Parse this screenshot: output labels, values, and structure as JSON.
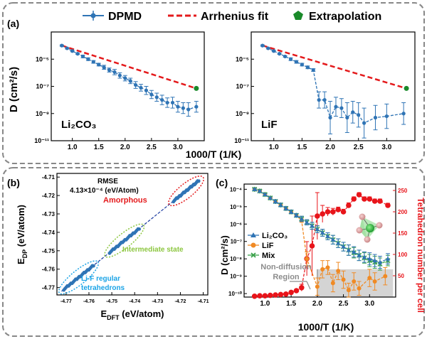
{
  "colors": {
    "dpmd": "#2f74b5",
    "arrhenius": "#e41a1c",
    "extrapolation": "#1a8a2a",
    "lif": "#f08a24",
    "mix": "#3aa14a",
    "tetra": "#e8141a",
    "panel_border": "#888888",
    "shade": "#d4d4d4",
    "ellipse_red": "#e41a1c",
    "ellipse_green": "#8cc63f",
    "ellipse_blue": "#1aa3e6",
    "ann_gray": "#8c8c8c"
  },
  "panel_a": {
    "label": "(a)",
    "legend": {
      "dpmd": "DPMD",
      "arrhenius": "Arrhenius fit",
      "extrapolation": "Extrapolation"
    },
    "ylabel": "D (cm²/s)",
    "xlabel": "1000/T (1/K)"
  },
  "panel_b": {
    "label": "(b)"
  },
  "panel_c": {
    "label": "(c)",
    "xlabel": "1000/T (1/K)",
    "ylabel_left": "D (cm²/s)",
    "ylabel_right": "Tetrahedron number per cell",
    "legend": {
      "li2co3": "Li₂CO₃",
      "lif": "LiF",
      "mix": "Mix"
    },
    "annotation_line1": "Non-diffusion",
    "annotation_line2": "Region"
  },
  "chart_data": [
    {
      "id": "a-left",
      "type": "line",
      "title": "Li₂CO₃",
      "xlabel": "1000/T (1/K)",
      "ylabel": "D (cm²/s)",
      "yscale": "log",
      "xlim": [
        0.6,
        3.5
      ],
      "ylim_exp": [
        -11,
        -3
      ],
      "xticks": [
        1.0,
        1.5,
        2.0,
        2.5,
        3.0
      ],
      "xtick_labels": [
        "1.0",
        "1.5",
        "2.0",
        "2.5",
        "3.0"
      ],
      "yticks_exp": [
        -11,
        -9,
        -7,
        -5
      ],
      "ytick_labels": [
        "10⁻¹¹",
        "10⁻⁹",
        "10⁻⁷",
        "10⁻⁵"
      ],
      "series": [
        {
          "name": "DPMD",
          "x": [
            0.8,
            0.9,
            1.0,
            1.1,
            1.2,
            1.3,
            1.4,
            1.5,
            1.6,
            1.7,
            1.8,
            1.9,
            2.0,
            2.1,
            2.2,
            2.3,
            2.4,
            2.5,
            2.6,
            2.7,
            2.8,
            2.9,
            3.0,
            3.1,
            3.2,
            3.35
          ],
          "y_exp": [
            -4.0,
            -4.2,
            -4.4,
            -4.6,
            -4.8,
            -5.0,
            -5.2,
            -5.4,
            -5.6,
            -5.8,
            -5.95,
            -6.2,
            -6.4,
            -6.6,
            -6.9,
            -7.1,
            -7.3,
            -7.6,
            -7.8,
            -8.0,
            -8.2,
            -8.2,
            -8.5,
            -8.6,
            -8.7,
            -8.5
          ],
          "err_exp": [
            0.05,
            0.05,
            0.05,
            0.05,
            0.1,
            0.1,
            0.1,
            0.1,
            0.15,
            0.15,
            0.2,
            0.2,
            0.2,
            0.2,
            0.25,
            0.25,
            0.3,
            0.3,
            0.3,
            0.35,
            0.35,
            0.4,
            0.4,
            0.4,
            0.5,
            0.4
          ]
        },
        {
          "name": "Arrhenius fit",
          "x": [
            0.8,
            3.35
          ],
          "y_exp": [
            -4.0,
            -7.15
          ]
        },
        {
          "name": "Extrapolation",
          "x": [
            3.35
          ],
          "y_exp": [
            -7.15
          ]
        }
      ]
    },
    {
      "id": "a-right",
      "type": "line",
      "title": "LiF",
      "xlabel": "1000/T (1/K)",
      "ylabel": "",
      "yscale": "log",
      "xlim": [
        0.6,
        3.5
      ],
      "ylim_exp": [
        -11,
        -3
      ],
      "xticks": [
        1.0,
        1.5,
        2.0,
        2.5,
        3.0
      ],
      "xtick_labels": [
        "1.0",
        "1.5",
        "2.0",
        "2.5",
        "3.0"
      ],
      "yticks_exp": [
        -11,
        -9,
        -7,
        -5
      ],
      "ytick_labels": [
        "10⁻¹¹",
        "10⁻⁹",
        "10⁻⁷",
        "10⁻⁵"
      ],
      "series": [
        {
          "name": "DPMD",
          "x": [
            0.8,
            0.9,
            1.0,
            1.1,
            1.2,
            1.3,
            1.4,
            1.5,
            1.6,
            1.7,
            1.8,
            1.9,
            2.0,
            2.1,
            2.2,
            2.3,
            2.4,
            2.5,
            2.6,
            2.8,
            3.0,
            3.3
          ],
          "y_exp": [
            -4.0,
            -4.2,
            -4.4,
            -4.6,
            -4.8,
            -5.0,
            -5.2,
            -5.4,
            -5.6,
            -5.8,
            -8.0,
            -8.0,
            -9.3,
            -8.5,
            -8.6,
            -9.3,
            -8.9,
            -9.1,
            -9.7,
            -9.3,
            -9.2,
            -9.0
          ],
          "err_exp": [
            0.05,
            0.05,
            0.05,
            0.05,
            0.05,
            0.1,
            0.1,
            0.1,
            0.1,
            0.1,
            0.6,
            0.6,
            1.2,
            0.7,
            0.7,
            1.1,
            0.8,
            0.9,
            1.1,
            0.9,
            0.9,
            0.8
          ]
        },
        {
          "name": "Arrhenius fit",
          "x": [
            0.8,
            3.35
          ],
          "y_exp": [
            -4.0,
            -7.15
          ]
        },
        {
          "name": "Extrapolation",
          "x": [
            3.35
          ],
          "y_exp": [
            -7.15
          ]
        }
      ]
    },
    {
      "id": "b",
      "type": "scatter",
      "title": "",
      "xlabel": "E_DFT (eV/atom)",
      "ylabel": "E_DP (eV/atom)",
      "xlim": [
        -4.774,
        -4.708
      ],
      "ylim": [
        -4.774,
        -4.708
      ],
      "xticks": [
        -4.77,
        -4.76,
        -4.75,
        -4.74,
        -4.73,
        -4.72,
        -4.71
      ],
      "xtick_labels": [
        "-4.77",
        "-4.76",
        "-4.75",
        "-4.74",
        "-4.73",
        "-4.72",
        "-4.71"
      ],
      "yticks": [
        -4.77,
        -4.76,
        -4.75,
        -4.74,
        -4.73,
        -4.72,
        -4.71
      ],
      "ytick_labels": [
        "-4.77",
        "-4.76",
        "-4.75",
        "-4.74",
        "-4.73",
        "-4.72",
        "-4.71"
      ],
      "rmse_title": "RMSE",
      "rmse_value": "4.13×10⁻⁴ (eV/Atom)",
      "clusters": [
        {
          "label": "Amorphous",
          "range": [
            -4.723,
            -4.712
          ]
        },
        {
          "label": "Intermediate state",
          "range": [
            -4.751,
            -4.738
          ]
        },
        {
          "label": "Li-F regular",
          "label2": "tetrahedrons",
          "range": [
            -4.771,
            -4.758
          ]
        }
      ],
      "diagonal": [
        -4.772,
        -4.711
      ]
    },
    {
      "id": "c",
      "type": "line",
      "title": "",
      "xlabel": "1000/T (1/K)",
      "ylabel": "D (cm²/s)",
      "y2label": "Tetrahedron number per cell",
      "yscale": "log",
      "xlim": [
        0.6,
        3.5
      ],
      "ylim_exp": [
        -10.2,
        -3.7
      ],
      "y2lim": [
        0,
        265
      ],
      "xticks": [
        1.0,
        1.5,
        2.0,
        2.5,
        3.0
      ],
      "xtick_labels": [
        "1.0",
        "1.5",
        "2.0",
        "2.5",
        "3.0"
      ],
      "yticks_exp": [
        -10,
        -9,
        -8,
        -7,
        -6,
        -5,
        -4
      ],
      "ytick_labels": [
        "10⁻¹⁰",
        "10⁻⁹",
        "10⁻⁸",
        "10⁻⁷",
        "10⁻⁶",
        "10⁻⁵",
        "10⁻⁴"
      ],
      "y2ticks": [
        50,
        100,
        150,
        200,
        250
      ],
      "y2tick_labels": [
        "50",
        "100",
        "150",
        "200",
        "250"
      ],
      "shaded_region": {
        "x": [
          2.0,
          3.45
        ],
        "y_exp": [
          -10.2,
          -8.6
        ]
      },
      "series": [
        {
          "name": "Li₂CO₃",
          "axis": "left",
          "x": [
            0.8,
            0.9,
            1.0,
            1.1,
            1.2,
            1.3,
            1.4,
            1.5,
            1.6,
            1.7,
            1.8,
            1.9,
            2.0,
            2.1,
            2.2,
            2.3,
            2.4,
            2.5,
            2.6,
            2.7,
            2.8,
            2.9,
            3.0,
            3.1,
            3.2,
            3.35
          ],
          "y_exp": [
            -4.0,
            -4.1,
            -4.3,
            -4.5,
            -4.7,
            -4.9,
            -5.1,
            -5.3,
            -5.5,
            -5.7,
            -5.9,
            -6.1,
            -6.3,
            -6.5,
            -6.7,
            -6.9,
            -7.1,
            -7.3,
            -7.5,
            -7.6,
            -7.8,
            -7.9,
            -8.0,
            -8.1,
            -8.2,
            -8.0
          ],
          "err_exp": [
            0.05,
            0.05,
            0.05,
            0.05,
            0.1,
            0.1,
            0.1,
            0.1,
            0.1,
            0.15,
            0.15,
            0.2,
            0.2,
            0.2,
            0.2,
            0.25,
            0.25,
            0.25,
            0.3,
            0.3,
            0.3,
            0.3,
            0.35,
            0.35,
            0.35,
            0.3
          ]
        },
        {
          "name": "LiF",
          "axis": "left",
          "x": [
            0.8,
            0.9,
            1.0,
            1.1,
            1.2,
            1.3,
            1.4,
            1.5,
            1.6,
            1.7,
            1.8,
            2.0,
            2.1,
            2.2,
            2.3,
            2.4,
            2.5,
            2.6,
            2.7,
            2.8,
            3.0,
            3.1,
            3.3
          ],
          "y_exp": [
            -4.0,
            -4.1,
            -4.3,
            -4.5,
            -4.7,
            -4.9,
            -5.1,
            -5.3,
            -5.5,
            -5.8,
            -8.0,
            -9.6,
            -8.6,
            -8.5,
            -9.4,
            -8.7,
            -9.2,
            -9.8,
            -9.3,
            -9.7,
            -9.1,
            -9.3,
            -9.0
          ],
          "err_exp": [
            0.05,
            0.05,
            0.05,
            0.05,
            0.05,
            0.1,
            0.1,
            0.1,
            0.1,
            0.1,
            0.4,
            0.5,
            0.5,
            0.4,
            0.5,
            0.5,
            0.5,
            0.4,
            0.5,
            0.4,
            0.5,
            0.5,
            0.5
          ]
        },
        {
          "name": "Mix",
          "axis": "left",
          "x": [
            0.8,
            0.9,
            1.0,
            1.1,
            1.2,
            1.3,
            1.4,
            1.5,
            1.6,
            1.7,
            1.8,
            1.9,
            2.0,
            2.1,
            2.2,
            2.3,
            2.4,
            2.5,
            2.6,
            2.7,
            2.8,
            2.9,
            3.0,
            3.1,
            3.2,
            3.35
          ],
          "y_exp": [
            -4.0,
            -4.1,
            -4.3,
            -4.5,
            -4.7,
            -4.9,
            -5.1,
            -5.3,
            -5.5,
            -5.7,
            -5.9,
            -6.1,
            -6.3,
            -6.5,
            -6.7,
            -6.9,
            -7.1,
            -7.3,
            -7.5,
            -7.65,
            -7.8,
            -7.95,
            -8.1,
            -8.2,
            -8.3,
            -8.1
          ],
          "err_exp": [
            0.05,
            0.05,
            0.05,
            0.05,
            0.1,
            0.1,
            0.1,
            0.1,
            0.1,
            0.15,
            0.15,
            0.2,
            0.2,
            0.2,
            0.2,
            0.25,
            0.25,
            0.25,
            0.3,
            0.3,
            0.3,
            0.3,
            0.35,
            0.35,
            0.35,
            0.3
          ]
        },
        {
          "name": "Tetrahedron number",
          "axis": "right",
          "x": [
            0.8,
            0.9,
            1.0,
            1.1,
            1.2,
            1.3,
            1.4,
            1.5,
            1.6,
            1.7,
            1.8,
            1.9,
            2.0,
            2.1,
            2.2,
            2.3,
            2.4,
            2.5,
            2.6,
            2.7,
            2.8,
            2.9,
            3.0,
            3.1,
            3.2,
            3.35
          ],
          "values": [
            2,
            3,
            3,
            4,
            5,
            6,
            7,
            11,
            15,
            22,
            90,
            120,
            190,
            195,
            200,
            200,
            205,
            200,
            215,
            230,
            240,
            230,
            230,
            225,
            225,
            215
          ],
          "err": [
            0,
            0,
            0,
            0,
            0,
            0,
            0,
            0,
            0,
            8,
            40,
            70,
            55,
            20,
            10,
            8,
            6,
            6,
            6,
            5,
            5,
            5,
            5,
            5,
            5,
            5
          ]
        }
      ]
    }
  ]
}
